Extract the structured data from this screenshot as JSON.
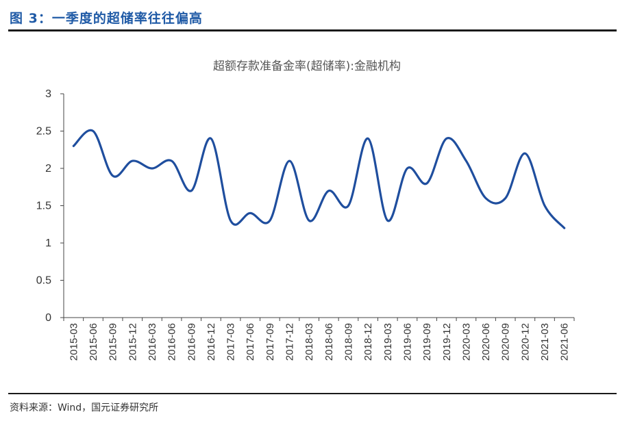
{
  "header": {
    "figure_title": "图 3：一季度的超储率往往偏高"
  },
  "footer": {
    "source": "资料来源：Wind，国元证券研究所"
  },
  "colors": {
    "title_blue": "#1f5aa6",
    "line_blue": "#1f4e9e"
  },
  "chart_data": {
    "type": "line",
    "title": "超额存款准备金率(超储率):金融机构",
    "xlabel": "",
    "ylabel": "",
    "ylim": [
      0,
      3
    ],
    "yticks": [
      "0",
      "0.5",
      "1",
      "1.5",
      "2",
      "2.5",
      "3"
    ],
    "grid": false,
    "legend": "none",
    "categories": [
      "2015-03",
      "2015-06",
      "2015-09",
      "2015-12",
      "2016-03",
      "2016-06",
      "2016-09",
      "2016-12",
      "2017-03",
      "2017-06",
      "2017-09",
      "2017-12",
      "2018-03",
      "2018-06",
      "2018-09",
      "2018-12",
      "2019-03",
      "2019-06",
      "2019-09",
      "2019-12",
      "2020-03",
      "2020-06",
      "2020-09",
      "2020-12",
      "2021-03",
      "2021-06"
    ],
    "series": [
      {
        "values": [
          2.3,
          2.5,
          1.9,
          2.1,
          2.0,
          2.1,
          1.7,
          2.4,
          1.3,
          1.4,
          1.3,
          2.1,
          1.3,
          1.7,
          1.5,
          2.4,
          1.3,
          2.0,
          1.8,
          2.4,
          2.1,
          1.6,
          1.6,
          2.2,
          1.5,
          1.2
        ]
      }
    ]
  }
}
